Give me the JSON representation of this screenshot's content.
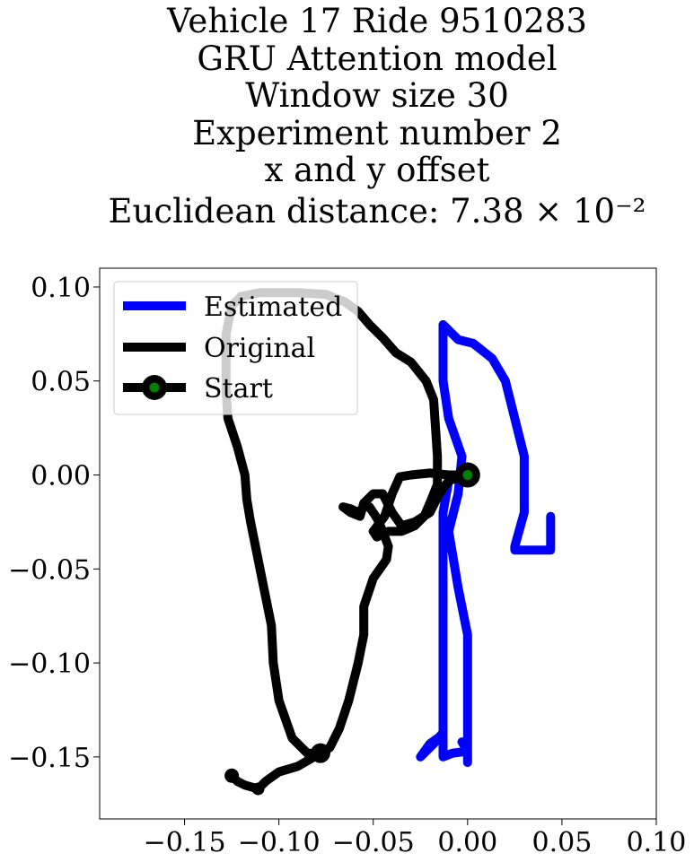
{
  "chart_data": {
    "type": "line",
    "title_lines": [
      "Vehicle 17 Ride 9510283",
      "GRU Attention model",
      "Window size 30",
      "Experiment number 2",
      "x and y offset",
      "Euclidean distance: 7.38 × 10⁻²"
    ],
    "xlim": [
      -0.195,
      0.1
    ],
    "ylim": [
      -0.183,
      0.11
    ],
    "xticks": [
      -0.15,
      -0.1,
      -0.05,
      0.0,
      0.05,
      0.1
    ],
    "yticks": [
      -0.15,
      -0.1,
      -0.05,
      0.0,
      0.05,
      0.1
    ],
    "xtick_labels": [
      "−0.15",
      "−0.10",
      "−0.05",
      "0.00",
      "0.05",
      "0.10"
    ],
    "ytick_labels": [
      "−0.15",
      "−0.10",
      "−0.05",
      "0.00",
      "0.05",
      "0.10"
    ],
    "grid": false,
    "legend_position": "upper-left",
    "series": [
      {
        "name": "Estimated",
        "color": "#0000ff",
        "points": [
          [
            0.0,
            0.0
          ],
          [
            -0.01,
            -0.003
          ],
          [
            -0.013,
            -0.02
          ],
          [
            -0.013,
            -0.07
          ],
          [
            -0.013,
            -0.11
          ],
          [
            -0.013,
            -0.138
          ],
          [
            -0.02,
            -0.143
          ],
          [
            -0.025,
            -0.15
          ],
          [
            -0.018,
            -0.143
          ],
          [
            -0.013,
            -0.137
          ],
          [
            -0.013,
            -0.15
          ],
          [
            -0.008,
            -0.148
          ],
          [
            0.0,
            -0.147
          ],
          [
            -0.003,
            -0.142
          ],
          [
            0.0,
            -0.147
          ],
          [
            0.0,
            -0.153
          ],
          [
            0.0,
            -0.12
          ],
          [
            0.0,
            -0.085
          ],
          [
            -0.005,
            -0.06
          ],
          [
            -0.01,
            -0.03
          ],
          [
            -0.005,
            -0.01
          ],
          [
            -0.003,
            0.01
          ],
          [
            -0.01,
            0.03
          ],
          [
            -0.013,
            0.05
          ],
          [
            -0.013,
            0.08
          ],
          [
            -0.005,
            0.072
          ],
          [
            0.003,
            0.07
          ],
          [
            0.013,
            0.062
          ],
          [
            0.02,
            0.05
          ],
          [
            0.025,
            0.03
          ],
          [
            0.03,
            0.01
          ],
          [
            0.03,
            -0.02
          ],
          [
            0.025,
            -0.038
          ],
          [
            0.025,
            -0.04
          ],
          [
            0.03,
            -0.04
          ],
          [
            0.035,
            -0.04
          ],
          [
            0.044,
            -0.04
          ],
          [
            0.044,
            -0.022
          ]
        ]
      },
      {
        "name": "Original",
        "color": "#000000",
        "points": [
          [
            0.0,
            0.0
          ],
          [
            -0.01,
            0.0
          ],
          [
            -0.02,
            0.001
          ],
          [
            -0.03,
            0.0
          ],
          [
            -0.036,
            -0.001
          ],
          [
            -0.04,
            -0.01
          ],
          [
            -0.044,
            -0.022
          ],
          [
            -0.05,
            -0.03
          ],
          [
            -0.048,
            -0.033
          ],
          [
            -0.042,
            -0.03
          ],
          [
            -0.035,
            -0.03
          ],
          [
            -0.028,
            -0.027
          ],
          [
            -0.023,
            -0.022
          ],
          [
            -0.02,
            -0.015
          ],
          [
            -0.016,
            -0.005
          ],
          [
            -0.016,
            0.01
          ],
          [
            -0.017,
            0.025
          ],
          [
            -0.018,
            0.04
          ],
          [
            -0.022,
            0.05
          ],
          [
            -0.03,
            0.06
          ],
          [
            -0.038,
            0.065
          ],
          [
            -0.045,
            0.073
          ],
          [
            -0.052,
            0.08
          ],
          [
            -0.058,
            0.087
          ],
          [
            -0.065,
            0.092
          ],
          [
            -0.075,
            0.096
          ],
          [
            -0.09,
            0.097
          ],
          [
            -0.1,
            0.097
          ],
          [
            -0.11,
            0.097
          ],
          [
            -0.12,
            0.095
          ],
          [
            -0.125,
            0.09
          ],
          [
            -0.128,
            0.075
          ],
          [
            -0.128,
            0.06
          ],
          [
            -0.128,
            0.045
          ],
          [
            -0.127,
            0.03
          ],
          [
            -0.122,
            0.015
          ],
          [
            -0.118,
            0.0
          ],
          [
            -0.117,
            -0.013
          ],
          [
            -0.115,
            -0.025
          ],
          [
            -0.112,
            -0.04
          ],
          [
            -0.108,
            -0.06
          ],
          [
            -0.104,
            -0.08
          ],
          [
            -0.103,
            -0.1
          ],
          [
            -0.1,
            -0.12
          ],
          [
            -0.093,
            -0.14
          ],
          [
            -0.085,
            -0.148
          ],
          [
            -0.078,
            -0.148
          ],
          [
            -0.073,
            -0.145
          ],
          [
            -0.068,
            -0.135
          ],
          [
            -0.063,
            -0.12
          ],
          [
            -0.058,
            -0.1
          ],
          [
            -0.055,
            -0.085
          ],
          [
            -0.055,
            -0.07
          ],
          [
            -0.05,
            -0.055
          ],
          [
            -0.043,
            -0.045
          ],
          [
            -0.042,
            -0.038
          ],
          [
            -0.045,
            -0.03
          ],
          [
            -0.048,
            -0.023
          ],
          [
            -0.052,
            -0.017
          ],
          [
            -0.055,
            -0.017
          ],
          [
            -0.058,
            -0.02
          ],
          [
            -0.062,
            -0.018
          ],
          [
            -0.066,
            -0.017
          ],
          [
            -0.062,
            -0.02
          ],
          [
            -0.057,
            -0.022
          ],
          [
            -0.055,
            -0.015
          ],
          [
            -0.05,
            -0.01
          ],
          [
            -0.045,
            -0.01
          ],
          [
            -0.04,
            -0.02
          ],
          [
            -0.035,
            -0.027
          ],
          [
            -0.028,
            -0.025
          ],
          [
            -0.02,
            -0.02
          ],
          [
            -0.015,
            -0.01
          ],
          [
            -0.01,
            -0.003
          ],
          [
            0.0,
            0.0
          ]
        ]
      },
      {
        "name": "Start",
        "color": "#008000",
        "marker_edge_color": "#000000",
        "points": [
          [
            0.0,
            0.0
          ]
        ]
      }
    ],
    "original_tail": [
      [
        -0.078,
        -0.148
      ],
      [
        -0.09,
        -0.155
      ],
      [
        -0.1,
        -0.158
      ],
      [
        -0.107,
        -0.163
      ],
      [
        -0.111,
        -0.167
      ],
      [
        -0.118,
        -0.165
      ],
      [
        -0.122,
        -0.163
      ],
      [
        -0.125,
        -0.16
      ]
    ]
  }
}
